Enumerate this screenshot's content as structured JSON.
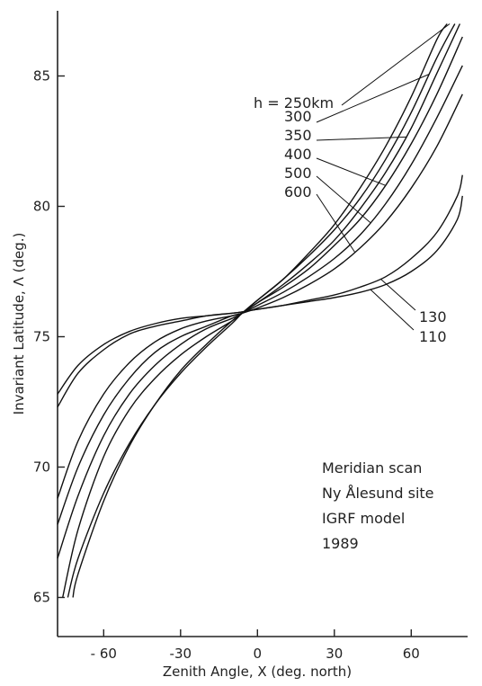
{
  "chart_data": {
    "type": "line",
    "title": "",
    "xlabel": "Zenith Angle, X (deg. north)",
    "ylabel": "Invariant Latitude, Λ (deg.)",
    "xlim": [
      -78,
      82
    ],
    "ylim": [
      63.5,
      87.5
    ],
    "xticks": [
      -60,
      -30,
      0,
      30,
      60
    ],
    "xtick_labels": [
      "- 60",
      "-30",
      "0",
      "30",
      "60"
    ],
    "yticks": [
      65,
      70,
      75,
      80,
      85
    ],
    "ytick_labels": [
      "65",
      "70",
      "75",
      "80",
      "85"
    ],
    "grid": false,
    "notes": [
      "Meridian scan",
      "Ny Ålesund site",
      "IGRF model",
      "1989"
    ],
    "series": [
      {
        "name": "h = 250km",
        "label_group": "upper",
        "x": [
          -74,
          -70,
          -60,
          -50,
          -40,
          -30,
          -20,
          -10,
          -6,
          0,
          10,
          20,
          30,
          40,
          50,
          60,
          70,
          74
        ],
        "y": [
          65.0,
          66.5,
          69.0,
          70.9,
          72.4,
          73.6,
          74.6,
          75.5,
          75.9,
          76.4,
          77.2,
          78.2,
          79.3,
          80.7,
          82.3,
          84.2,
          86.4,
          87.0
        ]
      },
      {
        "name": "300",
        "label_group": "upper",
        "x": [
          -72,
          -70,
          -60,
          -50,
          -40,
          -30,
          -20,
          -10,
          -6,
          0,
          10,
          20,
          30,
          40,
          50,
          60,
          70,
          77
        ],
        "y": [
          65.0,
          65.9,
          68.7,
          70.8,
          72.4,
          73.7,
          74.7,
          75.6,
          75.9,
          76.4,
          77.2,
          78.1,
          79.1,
          80.3,
          81.8,
          83.6,
          85.7,
          87.0
        ]
      },
      {
        "name": "350",
        "label_group": "upper",
        "x": [
          -76,
          -70,
          -60,
          -50,
          -40,
          -30,
          -20,
          -10,
          -6,
          0,
          10,
          20,
          30,
          40,
          50,
          60,
          70,
          79
        ],
        "y": [
          65.0,
          67.6,
          70.4,
          72.2,
          73.4,
          74.3,
          75.0,
          75.6,
          75.9,
          76.3,
          77.0,
          77.8,
          78.7,
          79.9,
          81.3,
          83.0,
          85.1,
          87.0
        ]
      },
      {
        "name": "400",
        "label_group": "upper",
        "x": [
          -78,
          -70,
          -60,
          -50,
          -40,
          -30,
          -20,
          -10,
          -6,
          0,
          10,
          20,
          30,
          40,
          50,
          60,
          70,
          80
        ],
        "y": [
          66.5,
          68.9,
          71.2,
          72.8,
          73.9,
          74.7,
          75.3,
          75.7,
          75.9,
          76.3,
          76.9,
          77.6,
          78.5,
          79.5,
          80.8,
          82.4,
          84.3,
          86.5
        ]
      },
      {
        "name": "500",
        "label_group": "upper",
        "x": [
          -78,
          -70,
          -60,
          -50,
          -40,
          -30,
          -20,
          -10,
          -6,
          0,
          10,
          20,
          30,
          40,
          50,
          60,
          70,
          80
        ],
        "y": [
          67.8,
          70.0,
          72.0,
          73.4,
          74.4,
          75.0,
          75.4,
          75.8,
          75.9,
          76.2,
          76.7,
          77.3,
          78.0,
          78.9,
          80.1,
          81.6,
          83.4,
          85.4
        ]
      },
      {
        "name": "600",
        "label_group": "upper",
        "x": [
          -78,
          -70,
          -60,
          -50,
          -40,
          -30,
          -20,
          -10,
          -6,
          0,
          10,
          20,
          30,
          40,
          50,
          60,
          70,
          80
        ],
        "y": [
          68.8,
          71.0,
          72.8,
          74.0,
          74.8,
          75.3,
          75.6,
          75.8,
          75.9,
          76.1,
          76.5,
          77.0,
          77.6,
          78.4,
          79.4,
          80.7,
          82.3,
          84.3
        ]
      },
      {
        "name": "130",
        "label_group": "lower",
        "x": [
          -78,
          -70,
          -60,
          -50,
          -40,
          -30,
          -20,
          -10,
          -6,
          0,
          10,
          20,
          30,
          40,
          50,
          60,
          70,
          78,
          80
        ],
        "y": [
          72.8,
          73.9,
          74.7,
          75.2,
          75.5,
          75.7,
          75.8,
          75.9,
          75.95,
          76.05,
          76.2,
          76.4,
          76.6,
          76.9,
          77.3,
          78.0,
          79.0,
          80.4,
          81.2
        ]
      },
      {
        "name": "110",
        "label_group": "lower",
        "x": [
          -78,
          -70,
          -60,
          -50,
          -40,
          -30,
          -20,
          -10,
          -6,
          0,
          10,
          20,
          30,
          40,
          50,
          60,
          70,
          78,
          80
        ],
        "y": [
          72.3,
          73.6,
          74.5,
          75.1,
          75.4,
          75.6,
          75.8,
          75.9,
          75.95,
          76.05,
          76.2,
          76.35,
          76.5,
          76.7,
          77.0,
          77.5,
          78.3,
          79.5,
          80.4
        ]
      }
    ]
  }
}
